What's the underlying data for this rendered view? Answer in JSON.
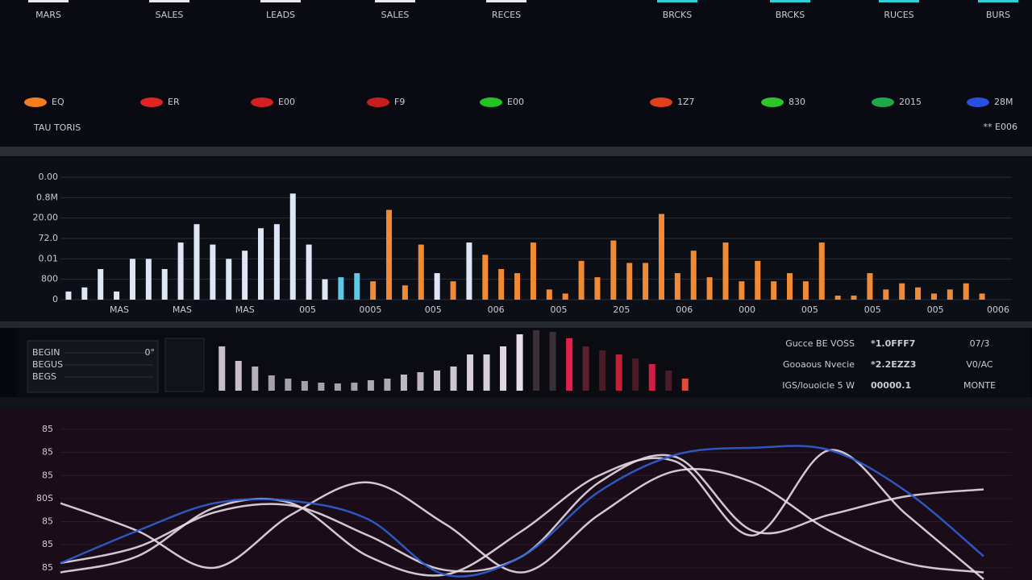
{
  "header": {
    "tabs": [
      "MARS",
      "SALES",
      "LEADS",
      "SALES",
      "RECES",
      "BRCKS",
      "BRCKS",
      "RUCES",
      "BURS"
    ],
    "kpis": [
      {
        "label": "EQ",
        "color": "#f57c1f"
      },
      {
        "label": "ER",
        "color": "#e02424"
      },
      {
        "label": "E00",
        "color": "#d42020"
      },
      {
        "label": "F9",
        "color": "#c81e1e"
      },
      {
        "label": "E00",
        "color": "#22c322"
      },
      {
        "label": "1Z7",
        "color": "#e0401e"
      },
      {
        "label": "830",
        "color": "#2ec42e"
      },
      {
        "label": "2015",
        "color": "#1fa84a"
      },
      {
        "label": "28M",
        "color": "#2a4fe0"
      }
    ],
    "subtitle": "TAU TORIS",
    "alert": "** E006"
  },
  "chart_data": [
    {
      "type": "bar",
      "values": [
        0.4,
        0.6,
        1.5,
        0.4,
        2.0,
        2.0,
        1.5,
        2.8,
        3.7,
        2.7,
        2.0,
        2.4,
        3.5,
        3.7,
        5.2,
        2.7,
        1.0,
        1.1,
        1.3,
        0.9,
        4.4,
        0.7,
        2.7,
        1.3,
        0.9,
        2.8,
        2.2,
        1.5,
        1.3,
        2.8,
        0.5,
        0.3,
        1.9,
        1.1,
        2.9,
        1.8,
        1.8,
        4.2,
        1.3,
        2.4,
        1.1,
        2.8,
        0.9,
        1.9,
        0.9,
        1.3,
        0.9,
        2.8,
        0.2,
        0.2,
        1.3,
        0.5,
        0.8,
        0.6,
        0.3,
        0.5,
        0.8,
        0.3
      ],
      "colors": [
        "#dfe6f5",
        "#dfe6f5",
        "#dfe6f5",
        "#dfe6f5",
        "#dfe6f5",
        "#dfe6f5",
        "#dfe6f5",
        "#dfe6f5",
        "#dfe6f5",
        "#dfe6f5",
        "#dfe6f5",
        "#dfe6f5",
        "#dfe6f5",
        "#dfe6f5",
        "#dfe6f5",
        "#dfe6f5",
        "#dfe6f5",
        "#5cc8ea",
        "#5cc8ea",
        "#f08a35",
        "#f08a35",
        "#f08a35",
        "#f08a35",
        "#dfe6f5",
        "#f08a35",
        "#dfe6f5",
        "#f08a35",
        "#f08a35",
        "#f08a35",
        "#f08a35",
        "#f08a35",
        "#f08a35",
        "#f08a35",
        "#f08a35",
        "#f08a35",
        "#f08a35",
        "#f08a35",
        "#f08a35",
        "#f08a35",
        "#f08a35",
        "#f08a35",
        "#f08a35",
        "#f08a35",
        "#f08a35",
        "#f08a35",
        "#f08a35",
        "#f08a35",
        "#f08a35",
        "#f08a35",
        "#f08a35",
        "#f08a35",
        "#f08a35",
        "#f08a35",
        "#f08a35",
        "#f08a35",
        "#f08a35",
        "#f08a35",
        "#f08a35"
      ],
      "ylim": [
        0,
        6
      ],
      "yticks": [
        0,
        {
          "value": 1,
          "label": "800"
        },
        {
          "value": 2,
          "label": "0.01"
        },
        {
          "value": 3,
          "label": "72.0"
        },
        {
          "value": 4,
          "label": "20.00"
        },
        {
          "value": 5,
          "label": "0.8M"
        },
        {
          "value": 6,
          "label": "0.00"
        }
      ],
      "x_labels": [
        "MAS",
        "MAS",
        "MAS",
        "005",
        "0005",
        "005",
        "006",
        "005",
        "205",
        "006",
        "000",
        "005",
        "005",
        "005",
        "0006"
      ],
      "grid": true
    },
    {
      "type": "line",
      "series": [
        {
          "color": "#e8dbe6",
          "values": [
            2.8,
            1.6,
            0.0,
            2.3,
            3.7,
            1.9,
            -0.2,
            2.3,
            4.2,
            3.7,
            1.6,
            0.2,
            -0.2
          ]
        },
        {
          "color": "#e8dbe6",
          "values": [
            0.2,
            0.9,
            2.4,
            2.7,
            1.4,
            -0.1,
            0.5,
            3.7,
            4.8,
            1.6,
            2.3,
            3.1,
            3.4
          ]
        },
        {
          "color": "#e8dbe6",
          "values": [
            -0.2,
            0.5,
            2.6,
            2.8,
            0.5,
            -0.3,
            1.6,
            4.0,
            4.6,
            1.4,
            5.1,
            2.3,
            -0.5
          ]
        },
        {
          "color": "#2f5fd0",
          "values": [
            0.2,
            1.6,
            2.8,
            2.9,
            2.1,
            -0.3,
            0.5,
            3.3,
            4.9,
            5.2,
            5.1,
            3.3,
            0.5
          ]
        }
      ],
      "ylim": [
        -0.6,
        6
      ],
      "yticks": [
        {
          "value": 0,
          "label": "85"
        },
        {
          "value": 1,
          "label": "85"
        },
        {
          "value": 2,
          "label": "85"
        },
        {
          "value": 3,
          "label": "80S"
        },
        {
          "value": 4,
          "label": "85"
        },
        {
          "value": 5,
          "label": "85"
        },
        {
          "value": 6,
          "label": "85"
        }
      ],
      "grid": true
    },
    {
      "type": "bar",
      "values": [
        5.5,
        3.7,
        3.0,
        1.9,
        1.5,
        1.2,
        1.0,
        0.9,
        1.0,
        1.3,
        1.5,
        2.0,
        2.3,
        2.5,
        3.0,
        4.5,
        4.5,
        5.5,
        7.0,
        7.5,
        7.3,
        6.5,
        5.5,
        5.0,
        4.5,
        4.0,
        3.3,
        2.5,
        1.5
      ],
      "colors": [
        "#c8c0c8",
        "#c8c0c8",
        "#b8b0b8",
        "#a8a0a8",
        "#a8a0a8",
        "#a8a0a8",
        "#a8a0a8",
        "#a8a0a8",
        "#a8a0a8",
        "#b0a8b0",
        "#b0a8b0",
        "#c0b8c0",
        "#c0b8c0",
        "#c8c0c8",
        "#d0c8d0",
        "#d8d0d8",
        "#d8d0d8",
        "#e0d8e0",
        "#e8e0e8",
        "#3a3036",
        "#3a3036",
        "#e0204a",
        "#5a2030",
        "#4a1c28",
        "#c0203a",
        "#4a1c28",
        "#d01e44",
        "#4a1c28",
        "#e04a3a"
      ]
    }
  ],
  "panel": {
    "labels": [
      "BEGIN",
      "BEGUS",
      "BEGS"
    ],
    "note": "0°"
  },
  "stats": {
    "rows": [
      {
        "label": "Gucce BE VOSS",
        "value": "*1.0FFF7",
        "unit": "07/3",
        "color": "#f0602a"
      },
      {
        "label": "Gooaous Nvecie",
        "value": "*2.2EZZ3",
        "unit": "V0/AC",
        "color": "#4aa8f0"
      },
      {
        "label": "IGS/louoicle 5 W",
        "value": "00000.1",
        "unit": "MONTE",
        "color": "#2fd6e0"
      }
    ]
  }
}
